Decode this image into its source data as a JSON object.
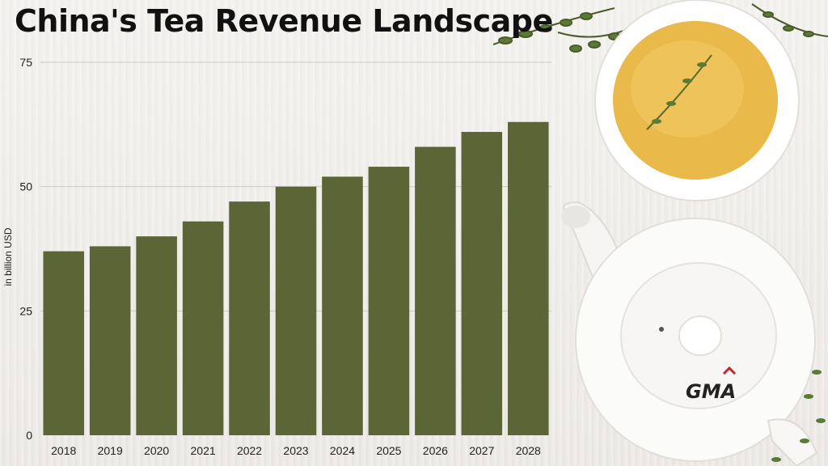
{
  "chart_data": {
    "type": "bar",
    "title": "China's Tea Revenue Landscape",
    "ylabel": "in billion USD",
    "xlabel": "",
    "categories": [
      "2018",
      "2019",
      "2020",
      "2021",
      "2022",
      "2023",
      "2024",
      "2025",
      "2026",
      "2027",
      "2028"
    ],
    "values": [
      37,
      38,
      40,
      43,
      47,
      50,
      52,
      54,
      58,
      61,
      63
    ],
    "ylim": [
      0,
      75
    ],
    "yticks": [
      0,
      25,
      50,
      75
    ],
    "grid": true,
    "bar_color": "#5c6535"
  },
  "logo": {
    "text": "GMA"
  },
  "colors": {
    "bar": "#5c6535",
    "grid": "#cfcac4",
    "tea": "#e9b94a"
  }
}
